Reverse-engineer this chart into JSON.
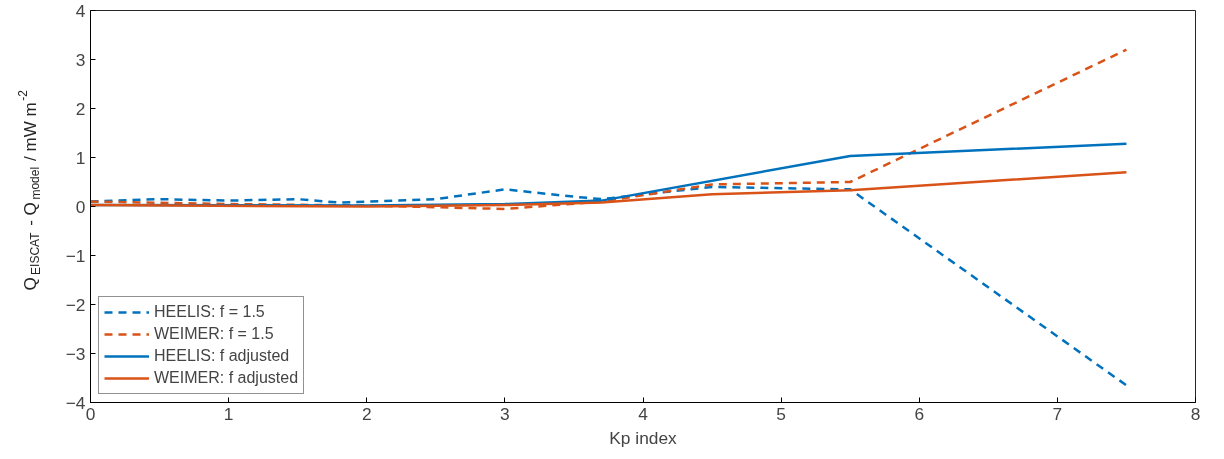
{
  "chart_data": {
    "type": "line",
    "xlabel": "Kp index",
    "ylabel": "Q$_{EISCAT}$ - Q$_{model}$ / mW m$^{-2}$",
    "xlim": [
      0,
      8
    ],
    "ylim": [
      -4,
      4
    ],
    "xticks": [
      0,
      1,
      2,
      3,
      4,
      5,
      6,
      7,
      8
    ],
    "yticks": [
      -4,
      -3,
      -2,
      -1,
      0,
      1,
      2,
      3,
      4
    ],
    "grid": false,
    "legend": "bottom left",
    "series": [
      {
        "name": "HEELIS: f = 1.5",
        "color": "#0072bd",
        "line_style": "dashed",
        "x": [
          0,
          0.5,
          1,
          1.5,
          1.8,
          2.5,
          3,
          3.5,
          3.7,
          4.5,
          5.5,
          7.5
        ],
        "values": [
          0.1,
          0.15,
          0.12,
          0.15,
          0.08,
          0.15,
          0.35,
          0.2,
          0.15,
          0.4,
          0.35,
          -3.65
        ]
      },
      {
        "name": "WEIMER: f = 1.5",
        "color": "#d95319",
        "line_style": "dashed",
        "x": [
          0,
          1,
          2,
          3,
          3.7,
          4.5,
          5.5,
          7.5
        ],
        "values": [
          0.1,
          0.05,
          0.02,
          -0.05,
          0.1,
          0.45,
          0.5,
          3.2
        ]
      },
      {
        "name": "HEELIS: f adjusted",
        "color": "#0072bd",
        "line_style": "solid",
        "x": [
          0,
          2,
          3,
          3.7,
          5.5,
          7.5
        ],
        "values": [
          0.03,
          0.02,
          0.05,
          0.12,
          1.03,
          1.28
        ]
      },
      {
        "name": "WEIMER: f adjusted",
        "color": "#d95319",
        "line_style": "solid",
        "x": [
          0,
          2,
          3,
          3.7,
          4.5,
          5.5,
          7.5
        ],
        "values": [
          0.03,
          0.0,
          0.03,
          0.08,
          0.25,
          0.33,
          0.7
        ]
      }
    ]
  }
}
